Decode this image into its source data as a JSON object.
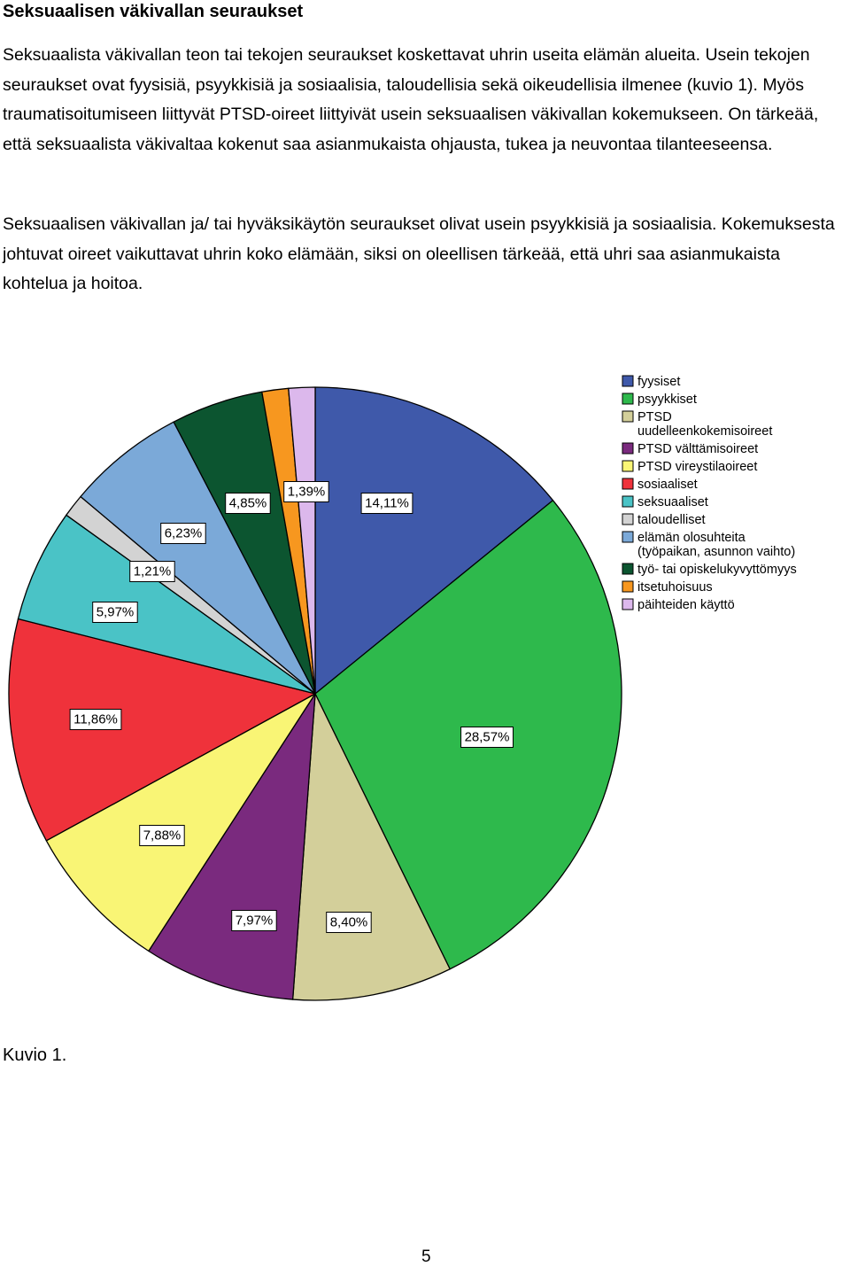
{
  "document": {
    "heading": "Seksuaalisen väkivallan seuraukset",
    "paragraphs": [
      "Seksuaalista väkivallan teon tai tekojen seuraukset koskettavat uhrin useita elämän alueita. Usein tekojen seuraukset ovat fyysisiä, psyykkisiä ja sosiaalisia, taloudellisia sekä oikeudellisia ilmenee (kuvio 1). Myös traumatisoitumiseen liittyvät PTSD-oireet liittyivät usein seksuaalisen väkivallan kokemukseen. On tärkeää, että seksuaalista väkivaltaa kokenut saa asianmukaista ohjausta, tukea ja neuvontaa tilanteeseensa.",
      "Seksuaalisen väkivallan ja/ tai hyväksikäytön seuraukset olivat usein psyykkisiä ja sosiaalisia. Kokemuksesta johtuvat oireet vaikuttavat uhrin koko elämään, siksi on oleellisen tärkeää, että uhri saa asianmukaista kohtelua ja hoitoa."
    ],
    "caption": "Kuvio 1.",
    "page_number": "5"
  },
  "chart_data": {
    "type": "pie",
    "title": "",
    "start": "top",
    "direction": "clockwise",
    "legend_position": "right",
    "slices": [
      {
        "name": "fyysiset",
        "value": 14.11,
        "label": "14,11%",
        "color": "#3f59aa"
      },
      {
        "name": "psyykkiset",
        "value": 28.57,
        "label": "28,57%",
        "color": "#2eb94c"
      },
      {
        "name": "PTSD uudelleenkokemisoireet",
        "value": 8.4,
        "label": "8,40%",
        "color": "#d3cf9a"
      },
      {
        "name": "PTSD välttämisoireet",
        "value": 7.97,
        "label": "7,97%",
        "color": "#7a2a7e"
      },
      {
        "name": "PTSD vireystilaoireet",
        "value": 7.88,
        "label": "7,88%",
        "color": "#f9f575"
      },
      {
        "name": "sosiaaliset",
        "value": 11.86,
        "label": "11,86%",
        "color": "#ef323b"
      },
      {
        "name": "seksuaaliset",
        "value": 5.97,
        "label": "5,97%",
        "color": "#4ac3c6"
      },
      {
        "name": "taloudelliset",
        "value": 1.21,
        "label": "1,21%",
        "color": "#d3d3d3"
      },
      {
        "name": "elämän olosuhteita (työpaikan, asunnon vaihto)",
        "value": 6.23,
        "label": "6,23%",
        "color": "#7ba9d8"
      },
      {
        "name": "työ- tai opiskelukyvyttömyys",
        "value": 4.85,
        "label": "4,85%",
        "color": "#0c5530"
      },
      {
        "name": "itsetuhoisuus",
        "value": 1.39,
        "label": "1,39%",
        "color": "#f7971f"
      },
      {
        "name": "päihteiden käyttö",
        "value": 1.39,
        "label": "",
        "color": "#dcb8ec"
      }
    ]
  }
}
